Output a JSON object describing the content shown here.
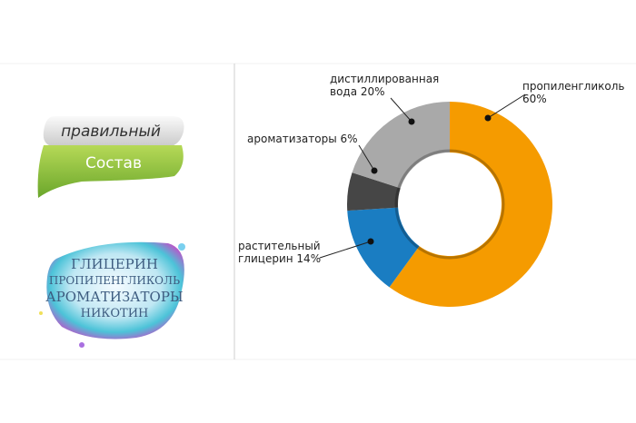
{
  "badge": {
    "top": "правильный",
    "bottom": "Состав"
  },
  "ingredients": [
    "ГЛИЦЕРИН",
    "ПРОПИЛЕНГЛИКОЛЬ",
    "АРОМАТИЗАТОРЫ",
    "НИКОТИН"
  ],
  "chart_data": {
    "type": "donut",
    "categories": [
      "пропиленгликоль",
      "растительный глицерин",
      "ароматизаторы",
      "дистиллированная вода"
    ],
    "values": [
      60,
      14,
      6,
      20
    ],
    "value_labels": [
      "60%",
      "14%",
      "6%",
      "20%"
    ],
    "colors": [
      "#f59b00",
      "#1a7dc2",
      "#464646",
      "#a9a9a9"
    ]
  }
}
